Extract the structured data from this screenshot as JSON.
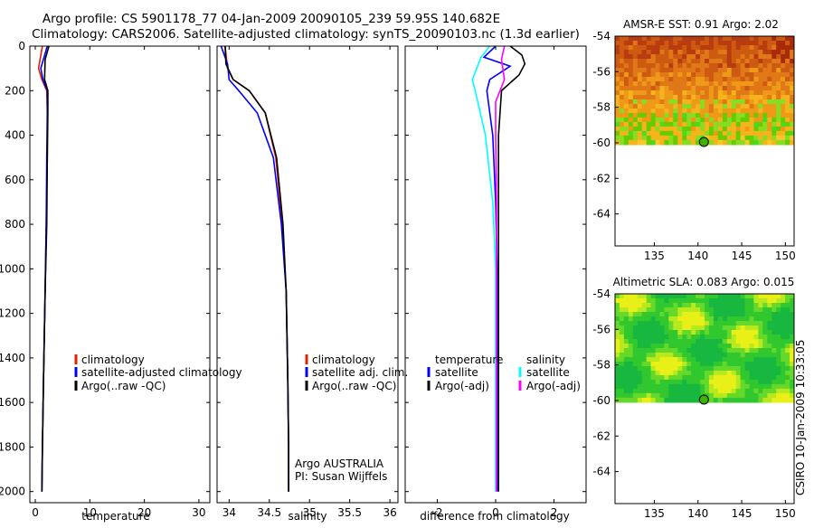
{
  "title_line1": "Argo profile: CS 5901178_77 04-Jan-2009 20090105_239 59.95S 140.682E",
  "title_line2": "Climatology: CARS2006. Satellite-adjusted climatology: synTS_20090103.nc (1.3d earlier)",
  "footer_credit": "CSIRO 10-Jan-2009 10:33:05",
  "colors": {
    "red": "#e02000",
    "blue": "#0000ff",
    "black": "#000000",
    "cyan": "#00ffff",
    "magenta": "#ff00ff"
  },
  "chart_data": [
    {
      "type": "line",
      "id": "temperature",
      "xlabel": "temperature",
      "ylabel": "",
      "xlim": [
        -1,
        32
      ],
      "ylim": [
        2050,
        0
      ],
      "xticks": [
        0,
        10,
        20,
        30
      ],
      "yticks": [
        0,
        200,
        400,
        600,
        800,
        1000,
        1200,
        1400,
        1600,
        1800,
        2000
      ],
      "legend": [
        "climatology",
        "satellite-adjusted climatology",
        "Argo(..raw -QC)"
      ],
      "series": [
        {
          "name": "climatology",
          "color": "red",
          "x": [
            1.3,
            0.6,
            1.2,
            2.1,
            2.2,
            2.2,
            2.0,
            1.8,
            1.5,
            1.3,
            1.2
          ],
          "y": [
            0,
            100,
            150,
            200,
            300,
            500,
            800,
            1100,
            1500,
            1800,
            2000
          ]
        },
        {
          "name": "satellite-adjusted climatology",
          "color": "blue",
          "x": [
            2.2,
            1.0,
            1.4,
            2.2,
            2.2,
            2.1,
            2.0,
            1.8,
            1.5,
            1.3,
            1.2
          ],
          "y": [
            0,
            100,
            150,
            200,
            300,
            500,
            800,
            1100,
            1500,
            1800,
            2000
          ]
        },
        {
          "name": "Argo(..raw -QC)",
          "color": "black",
          "x": [
            2.5,
            1.8,
            1.7,
            2.3,
            2.3,
            2.2,
            2.1,
            1.8,
            1.5,
            1.3,
            1.2
          ],
          "y": [
            0,
            60,
            150,
            200,
            300,
            500,
            800,
            1100,
            1500,
            1800,
            2000
          ]
        }
      ]
    },
    {
      "type": "line",
      "id": "salinity",
      "xlabel": "salinity",
      "ylabel": "",
      "xlim": [
        33.85,
        36.1
      ],
      "ylim": [
        2050,
        0
      ],
      "xticks": [
        34,
        34.5,
        35,
        35.5,
        36
      ],
      "xticklabels": [
        "34",
        "34.5",
        "35",
        "35.5",
        "36"
      ],
      "legend": [
        "climatology",
        "satellite adj. clim.",
        "Argo(..raw -QC)"
      ],
      "annotation": [
        "Argo AUSTRALIA",
        "PI: Susan Wijffels"
      ],
      "series": [
        {
          "name": "climatology",
          "color": "red",
          "x": [
            33.95,
            33.98,
            34.05,
            34.25,
            34.45,
            34.58,
            34.66,
            34.71,
            34.73,
            34.74,
            34.74
          ],
          "y": [
            0,
            100,
            150,
            200,
            300,
            500,
            800,
            1100,
            1500,
            1800,
            2000
          ]
        },
        {
          "name": "satellite adj. clim.",
          "color": "blue",
          "x": [
            33.9,
            33.98,
            34.0,
            34.12,
            34.35,
            34.55,
            34.65,
            34.71,
            34.73,
            34.74,
            34.74
          ],
          "y": [
            0,
            80,
            150,
            200,
            300,
            500,
            800,
            1100,
            1500,
            1800,
            2000
          ]
        },
        {
          "name": "Argo(..raw -QC)",
          "color": "black",
          "x": [
            33.95,
            33.96,
            34.05,
            34.25,
            34.45,
            34.59,
            34.67,
            34.71,
            34.73,
            34.74,
            34.74
          ],
          "y": [
            0,
            80,
            150,
            200,
            300,
            500,
            800,
            1100,
            1500,
            1800,
            2000
          ]
        }
      ]
    },
    {
      "type": "line",
      "id": "difference",
      "xlabel": "difference from climatology",
      "ylabel": "",
      "xlim": [
        -3.1,
        3.1
      ],
      "ylim": [
        2050,
        0
      ],
      "xticks": [
        -2,
        0,
        2
      ],
      "legend_temperature": [
        "temperature",
        "satellite",
        "Argo(-adj)"
      ],
      "legend_salinity": [
        "salinity",
        "satellite",
        "Argo(-adj)"
      ],
      "series": [
        {
          "name": "temperature satellite",
          "color": "blue",
          "x": [
            0.0,
            -0.4,
            0.5,
            -0.2,
            -0.3,
            -0.1,
            0.0,
            0.05,
            0.05,
            0.05,
            0.05
          ],
          "y": [
            0,
            50,
            90,
            150,
            200,
            400,
            700,
            1000,
            1400,
            1800,
            2000
          ]
        },
        {
          "name": "temperature Argo(-adj)",
          "color": "black",
          "x": [
            0.5,
            0.9,
            1.0,
            0.8,
            0.2,
            0.1,
            0.1,
            0.1,
            0.1,
            0.1,
            0.1
          ],
          "y": [
            0,
            40,
            80,
            130,
            200,
            400,
            700,
            1000,
            1400,
            1800,
            2000
          ]
        },
        {
          "name": "salinity satellite",
          "color": "cyan",
          "x": [
            -0.2,
            -0.5,
            -0.8,
            -0.7,
            -0.35,
            -0.1,
            0.0,
            0.0,
            0.0,
            0.0,
            0.0
          ],
          "y": [
            0,
            50,
            150,
            200,
            400,
            700,
            1000,
            1300,
            1600,
            1800,
            2000
          ]
        },
        {
          "name": "salinity Argo(-adj)",
          "color": "magenta",
          "x": [
            0.3,
            0.2,
            0.3,
            0.0,
            0.0,
            0.03,
            0.03,
            0.03,
            0.03,
            0.03,
            0.03
          ],
          "y": [
            0,
            60,
            150,
            250,
            400,
            700,
            1000,
            1300,
            1600,
            1800,
            2000
          ]
        }
      ]
    },
    {
      "type": "heatmap",
      "id": "sst_map",
      "title": "AMSR-E SST: 0.91 Argo: 2.02",
      "xlim": [
        130.5,
        151
      ],
      "ylim": [
        -65.8,
        -54
      ],
      "xticks": [
        135,
        140,
        145,
        150
      ],
      "yticks": [
        -54,
        -56,
        -58,
        -60,
        -62,
        -64
      ],
      "data_extent_lat": [
        -60.1,
        -54
      ],
      "marker": {
        "lon": 140.68,
        "lat": -59.95
      }
    },
    {
      "type": "heatmap",
      "id": "sla_map",
      "title": "Altimetric SLA: 0.083 Argo: 0.015",
      "xlim": [
        130.5,
        151
      ],
      "ylim": [
        -65.8,
        -54
      ],
      "xticks": [
        135,
        140,
        145,
        150
      ],
      "yticks": [
        -54,
        -56,
        -58,
        -60,
        -62,
        -64
      ],
      "data_extent_lat": [
        -60.1,
        -54
      ],
      "marker": {
        "lon": 140.68,
        "lat": -59.95
      }
    }
  ]
}
